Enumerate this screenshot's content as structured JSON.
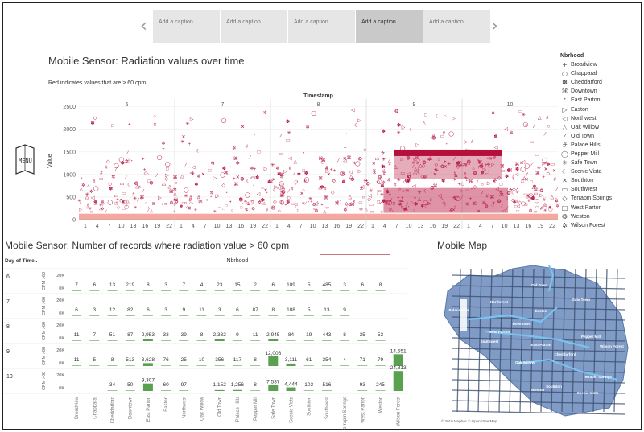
{
  "captions": {
    "items": [
      "Add a caption",
      "Add a caption",
      "Add a caption",
      "Add a caption",
      "Add a caption"
    ],
    "active_index": 3,
    "prev_icon": "chevron-left-icon",
    "next_icon": "chevron-right-icon"
  },
  "chart1": {
    "title": "Mobile Sensor: Radiation values over time",
    "note": "Red indicates values that are > 60 cpm",
    "x_title": "Timestamp",
    "y_title": "Value",
    "menu_label": "MENU"
  },
  "legend": {
    "title": "Nbrhood",
    "items": [
      {
        "label": "Broadview",
        "symbol": "+"
      },
      {
        "label": "Chapparal",
        "symbol": "○"
      },
      {
        "label": "Cheddarford",
        "symbol": "✽"
      },
      {
        "label": "Downtown",
        "symbol": "⌘"
      },
      {
        "label": "East Parton",
        "symbol": "ᐩ"
      },
      {
        "label": "Easton",
        "symbol": "▷"
      },
      {
        "label": "Northwest",
        "symbol": "◁"
      },
      {
        "label": "Oak Willow",
        "symbol": "△"
      },
      {
        "label": "Old Town",
        "symbol": "⁄"
      },
      {
        "label": "Palace Hills",
        "symbol": "#"
      },
      {
        "label": "Pepper Mill",
        "symbol": "◯"
      },
      {
        "label": "Safe Town",
        "symbol": "✳"
      },
      {
        "label": "Scenic Vista",
        "symbol": "☾"
      },
      {
        "label": "Southton",
        "symbol": "✕"
      },
      {
        "label": "Southwest",
        "symbol": "▭"
      },
      {
        "label": "Terrapin Springs",
        "symbol": "◇"
      },
      {
        "label": "West Parton",
        "symbol": "□"
      },
      {
        "label": "Weston",
        "symbol": "❂"
      },
      {
        "label": "Wilson Forest",
        "symbol": "✲"
      }
    ]
  },
  "chart_data": [
    {
      "type": "scatter",
      "title": "Mobile Sensor: Radiation values over time",
      "xlabel": "Timestamp",
      "ylabel": "Value",
      "ylim": [
        0,
        2600
      ],
      "y_ticks": [
        0,
        500,
        1000,
        1500,
        2000,
        2500
      ],
      "day_panels": [
        "6",
        "7",
        "8",
        "9",
        "10"
      ],
      "hour_ticks": [
        "1",
        "4",
        "7",
        "10",
        "13",
        "16",
        "19",
        "22"
      ],
      "threshold_cpm": 60,
      "colors": {
        "above": "#b5103c",
        "below": "#f4a8a0"
      },
      "series_note": "Red indicates values that are > 60 cpm",
      "bands": [
        {
          "day": "9",
          "from_hour": 7,
          "to_hour": 24,
          "value_range": [
            900,
            1550
          ]
        },
        {
          "day": "10",
          "from_hour": 0,
          "to_hour": 10,
          "value_range": [
            900,
            1550
          ]
        }
      ]
    },
    {
      "type": "bar",
      "title": "Mobile Sensor: Number of records where radiation value > 60 cpm",
      "row_header": "Day of Time..",
      "column_header": "Nbrhood",
      "axis_label": "CPM >60",
      "axis_ticks": [
        "20K",
        "0K"
      ],
      "categories": [
        "Broadview",
        "Chapparal",
        "Cheddarford",
        "Downtown",
        "East Parton",
        "Easton",
        "Northwest",
        "Oak Willow",
        "Old Town",
        "Palace Hills",
        "Pepper Mill",
        "Safe Town",
        "Scenic Vista",
        "Southton",
        "Southwest",
        "Terrapin Springs",
        "West Parton",
        "Weston",
        "Wilson Forest"
      ],
      "series": [
        {
          "name": "6",
          "values": [
            "7",
            "6",
            "13",
            "219",
            "8",
            "3",
            "7",
            "4",
            "23",
            "15",
            "2",
            "6",
            "109",
            "5",
            "485",
            "3",
            "6",
            "8",
            ""
          ]
        },
        {
          "name": "7",
          "values": [
            "6",
            "3",
            "12",
            "82",
            "6",
            "3",
            "9",
            "11",
            "3",
            "6",
            "87",
            "8",
            "188",
            "5",
            "13",
            "9",
            "",
            "",
            ""
          ]
        },
        {
          "name": "8",
          "values": [
            "11",
            "7",
            "51",
            "87",
            "2,953",
            "33",
            "39",
            "8",
            "2,332",
            "9",
            "11",
            "2,945",
            "84",
            "19",
            "443",
            "8",
            "35",
            "53",
            ""
          ]
        },
        {
          "name": "9",
          "values": [
            "11",
            "5",
            "8",
            "513",
            "3,628",
            "76",
            "25",
            "10",
            "356",
            "117",
            "8",
            "12,008",
            "3,111",
            "61",
            "354",
            "4",
            "71",
            "79",
            "14,651"
          ]
        },
        {
          "name": "10",
          "values": [
            "",
            "",
            "34",
            "50",
            "9,307",
            "60",
            "97",
            "",
            "1,152",
            "1,256",
            "8",
            "7,537",
            "4,444",
            "102",
            "516",
            "",
            "93",
            "245",
            "24,813"
          ]
        }
      ]
    }
  ],
  "table": {
    "title": "Mobile Sensor: Number of records where radiation value > 60 cpm"
  },
  "map": {
    "title": "Mobile Map",
    "credit": "© 2019 Mapbox © OpenStreetMap",
    "labels": [
      "Old Town",
      "Safe Town",
      "Palace Hills",
      "Northwest",
      "Easton",
      "Downtown",
      "Pepper Mill",
      "West Parton",
      "East Parton",
      "Cheddarford",
      "Oak Willow",
      "Wilson Forest",
      "Terrapin Springs",
      "Southwest",
      "Southton",
      "Scenic Vista",
      "Weston"
    ]
  }
}
